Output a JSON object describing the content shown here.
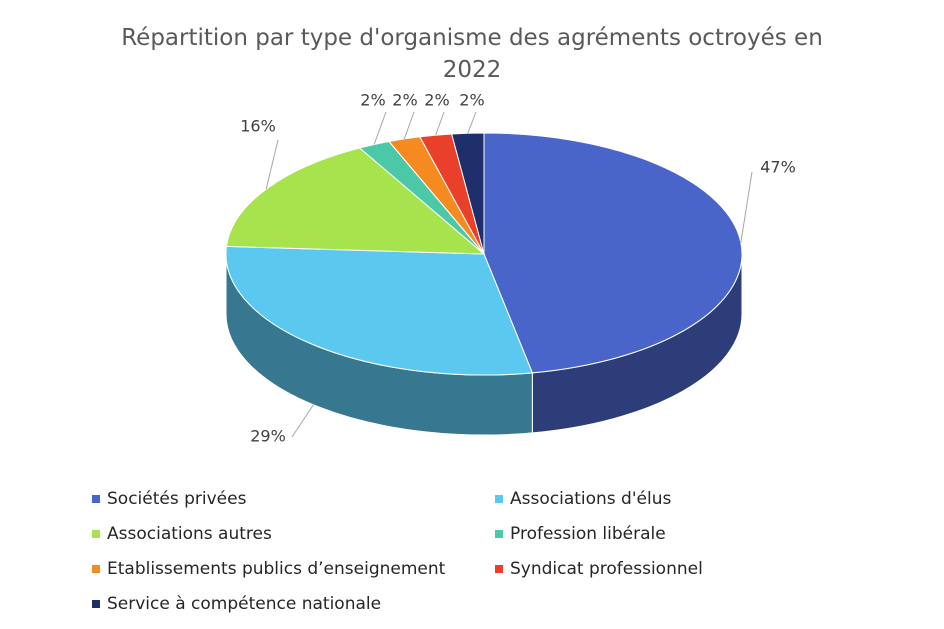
{
  "chart_data": {
    "type": "pie3d",
    "title": "Répartition par type d'organisme des agréments octroyés en 2022",
    "categories": [
      "Sociétés privées",
      "Associations d'élus",
      "Associations autres",
      "Profession libérale",
      "Etablissements publics d’enseignement",
      "Syndicat professionnel",
      "Service à compétence nationale"
    ],
    "values": [
      47,
      29,
      16,
      2,
      2,
      2,
      2
    ],
    "value_labels": [
      "47%",
      "29%",
      "16%",
      "2%",
      "2%",
      "2%",
      "2%"
    ],
    "colors": [
      "#4a65c9",
      "#5bc8f0",
      "#a6e34c",
      "#4bc8a8",
      "#f58a20",
      "#e8402a",
      "#1f2f6b"
    ],
    "legend": "bottom"
  }
}
